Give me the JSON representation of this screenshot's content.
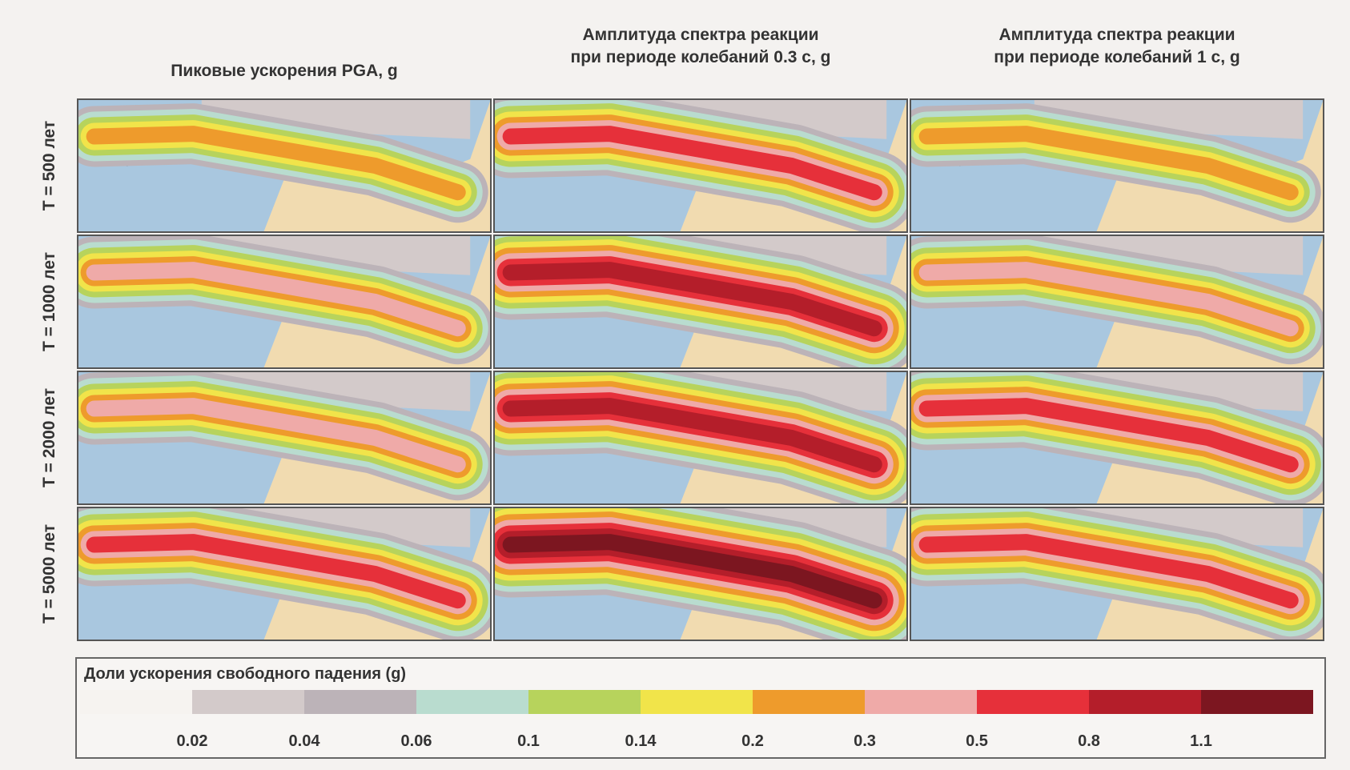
{
  "columns": [
    "Пиковые ускорения PGA, g",
    "Амплитуда спектра реакции при периоде колебаний 0.3 с, g",
    "Амплитуда спектра реакции при периоде колебаний 1 с, g"
  ],
  "rows": [
    "T = 500 лет",
    "T = 1000 лет",
    "T = 2000 лет",
    "T = 5000 лет"
  ],
  "legend": {
    "title": "Доли ускорения свободного падения (g)",
    "colors": [
      "#f6f3f0",
      "#d3caca",
      "#bcb3b8",
      "#b9dccf",
      "#b7d35c",
      "#f1e44a",
      "#ee9b2c",
      "#efaaa8",
      "#e6303a",
      "#b41e2a",
      "#7c1620"
    ],
    "labels": [
      "0.02",
      "0.04",
      "0.06",
      "0.1",
      "0.14",
      "0.2",
      "0.3",
      "0.5",
      "0.8",
      "1.1"
    ]
  }
}
